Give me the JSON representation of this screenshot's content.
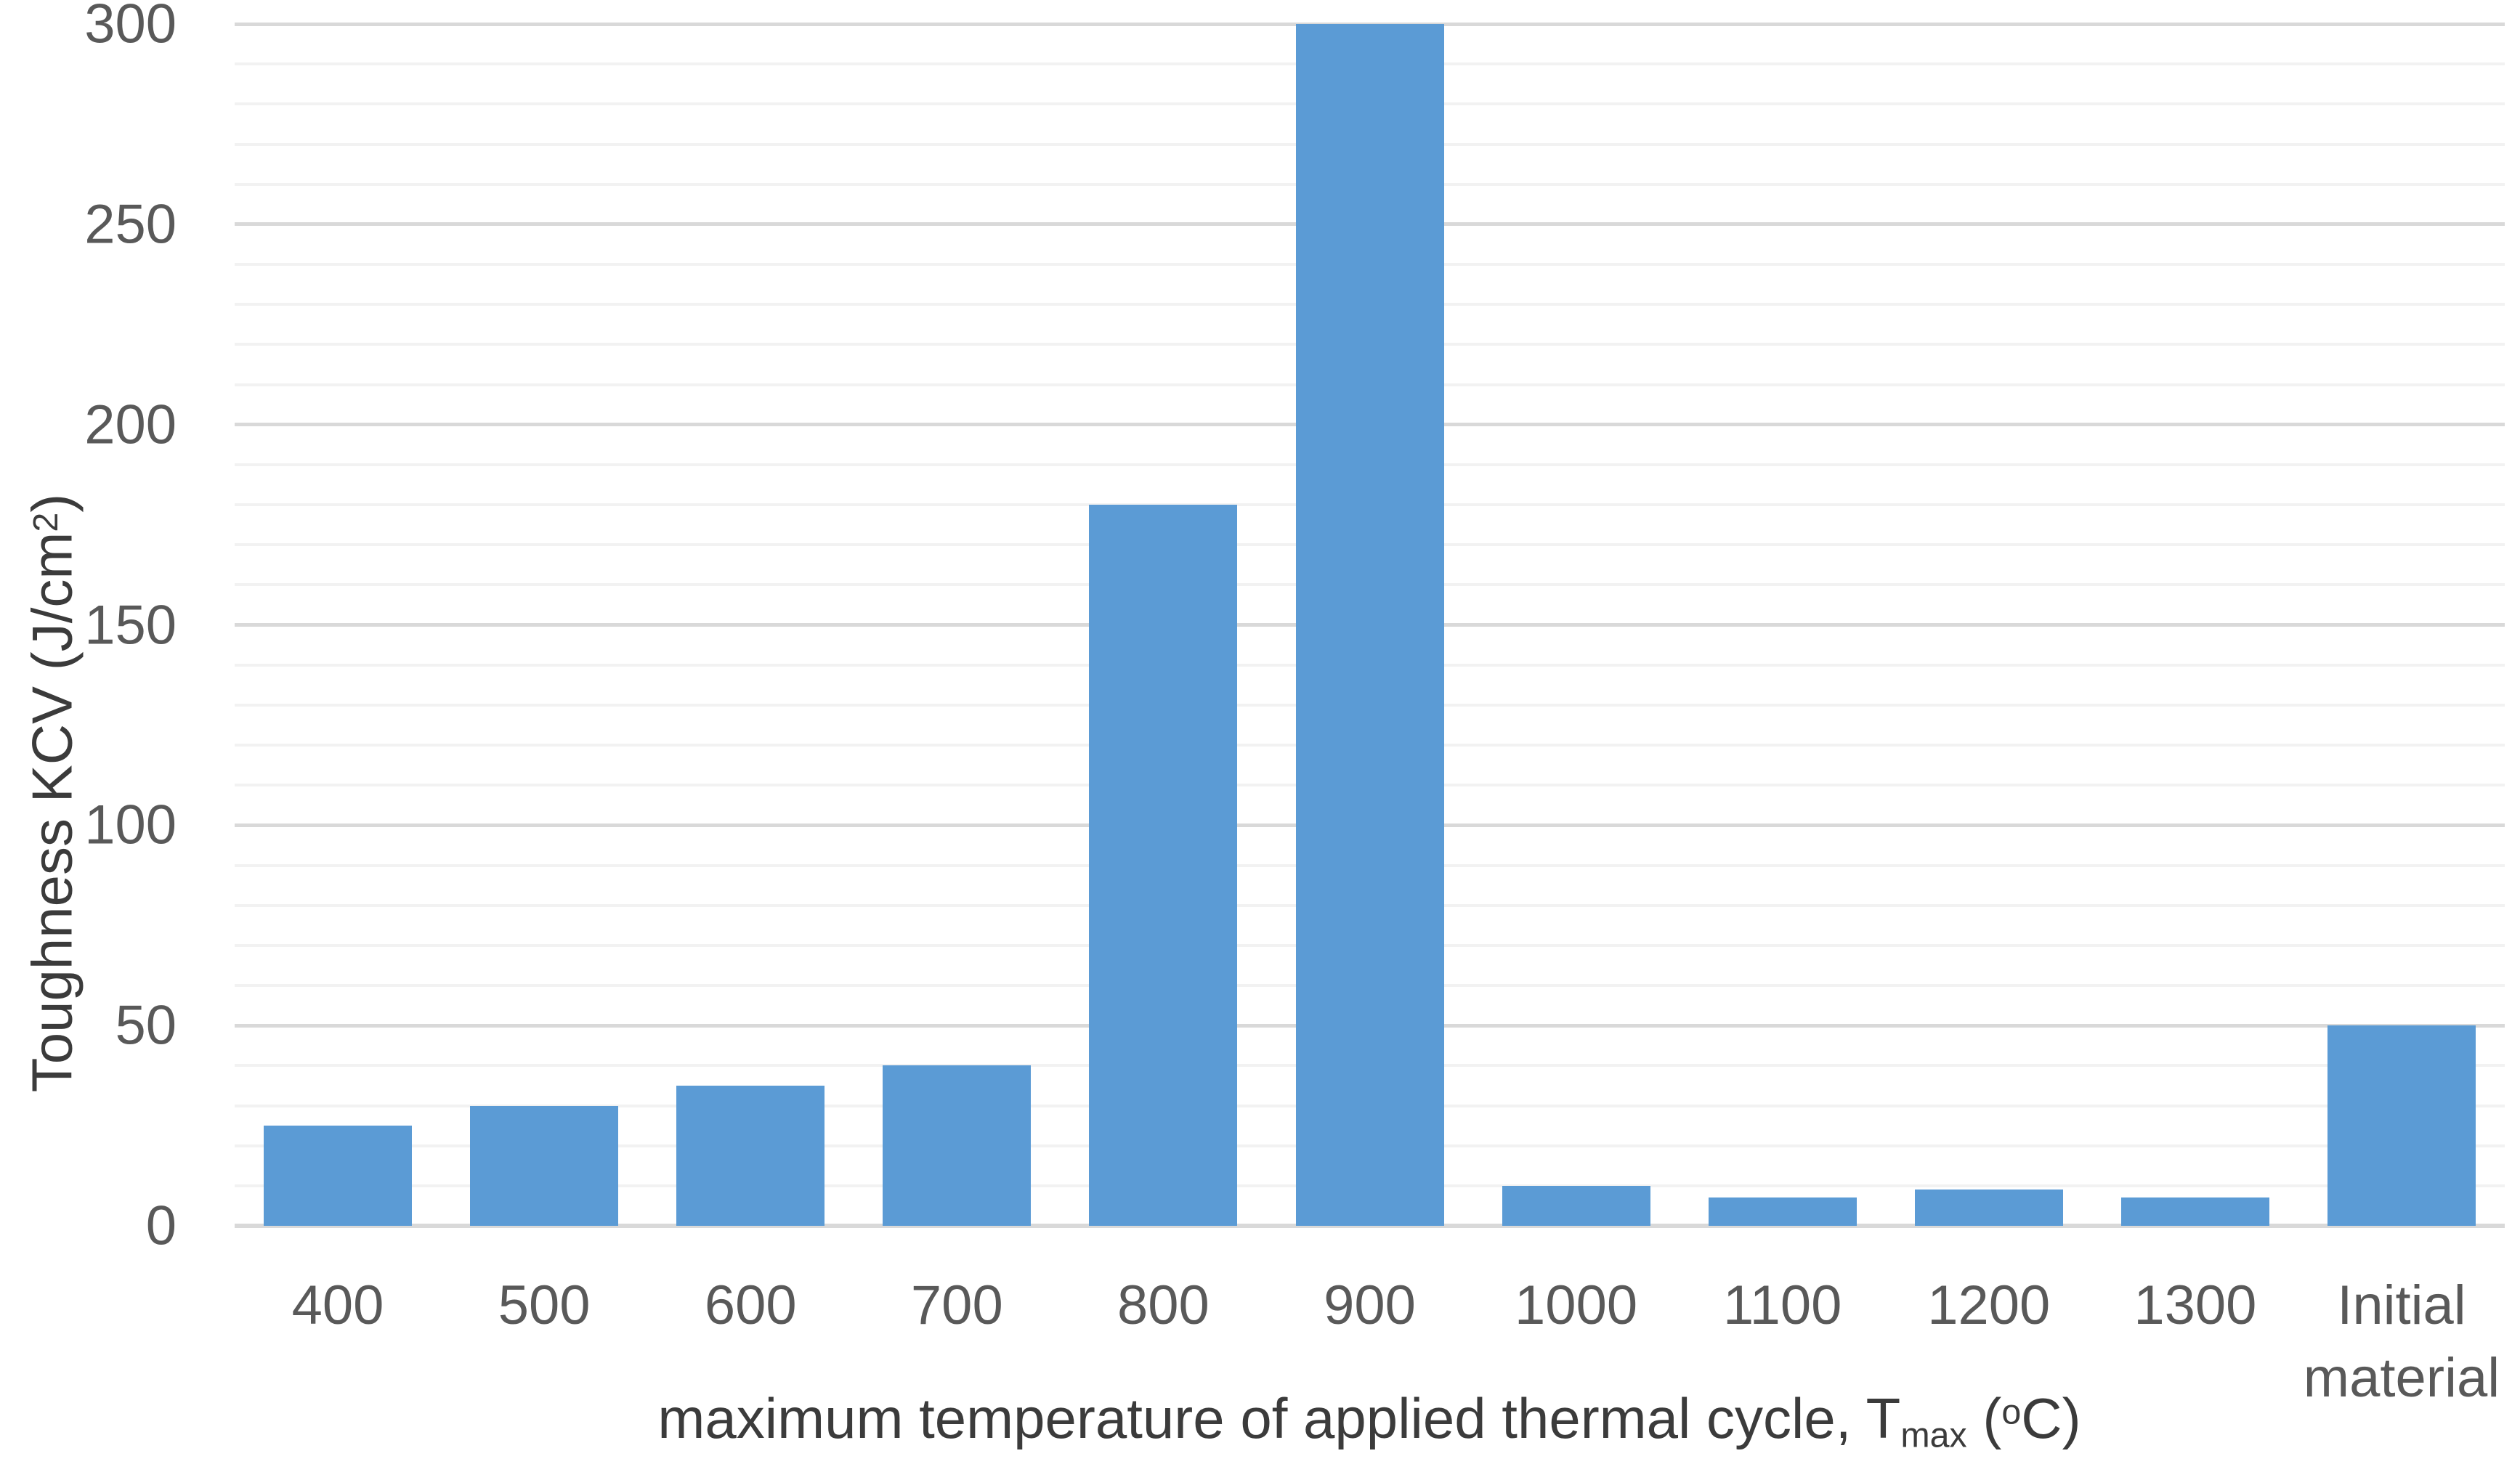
{
  "chart_data": {
    "type": "bar",
    "title": "",
    "categories": [
      "400",
      "500",
      "600",
      "700",
      "800",
      "900",
      "1000",
      "1100",
      "1200",
      "1300",
      "Initial material"
    ],
    "values": [
      25,
      30,
      35,
      40,
      180,
      300,
      10,
      7,
      9,
      7,
      50
    ],
    "series": [
      {
        "name": "Toughness KCV",
        "values": [
          25,
          30,
          35,
          40,
          180,
          300,
          10,
          7,
          9,
          7,
          50
        ]
      }
    ],
    "xlabel": "maximum temperature of applied thermal cycle, Tmax (oC)",
    "xlabel_parts": {
      "prefix": "maximum temperature of applied thermal cycle, T",
      "subscript": "max",
      "mid": " (",
      "superscript": "o",
      "suffix": "C)"
    },
    "ylabel": "Toughness KCV (J/cm2)",
    "ylabel_parts": {
      "prefix": "Toughness KCV  (J/cm",
      "superscript": "2",
      "suffix": ")"
    },
    "ylim": [
      0,
      300
    ],
    "yticks": [
      0,
      50,
      100,
      150,
      200,
      250,
      300
    ],
    "ytick_step_major": 50,
    "ytick_step_minor": 10,
    "grid": "horizontal",
    "legend_position": "none",
    "style": {
      "bar_color": "#5B9BD5",
      "grid_minor_color": "#F2F2F2",
      "grid_major_color": "#D9D9D9",
      "axis_line_color": "#D9D9D9",
      "tick_label_color": "#595959",
      "axis_title_color": "#3b3b3b",
      "background": "#FFFFFF"
    }
  }
}
